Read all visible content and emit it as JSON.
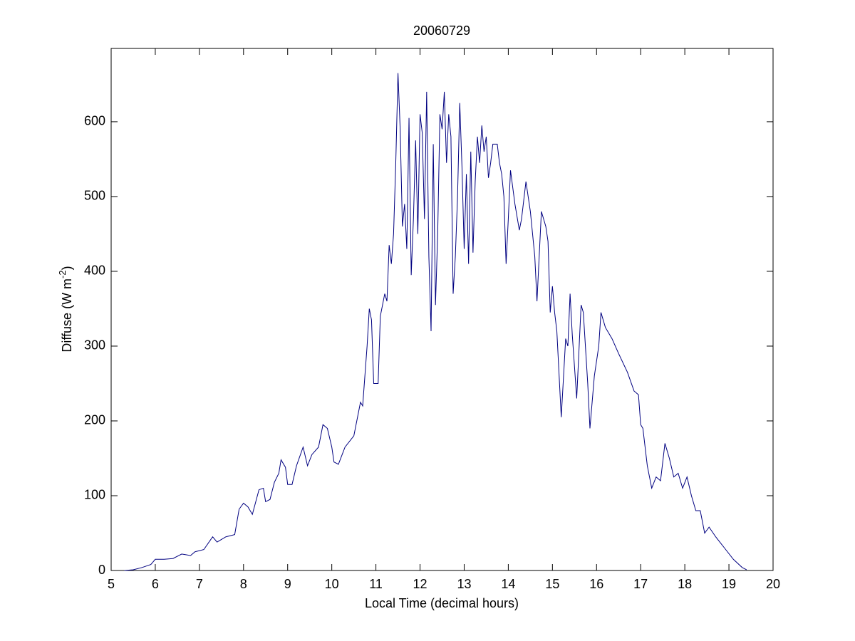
{
  "chart_data": {
    "type": "line",
    "title": "20060729",
    "x_label": "Local Time (decimal hours)",
    "y_label_parts": [
      "Diffuse (W m",
      "-2",
      ")"
    ],
    "color": "#000080",
    "xlim": [
      5,
      20
    ],
    "xticks": [
      5,
      6,
      7,
      8,
      9,
      10,
      11,
      12,
      13,
      14,
      15,
      16,
      17,
      18,
      19,
      20
    ],
    "ylim": [
      0,
      698
    ],
    "yticks": [
      0,
      100,
      200,
      300,
      400,
      500,
      600
    ],
    "x": [
      5.3,
      5.5,
      5.7,
      5.9,
      6.0,
      6.2,
      6.4,
      6.6,
      6.8,
      6.9,
      7.1,
      7.3,
      7.4,
      7.6,
      7.8,
      7.9,
      8.0,
      8.1,
      8.2,
      8.35,
      8.45,
      8.5,
      8.6,
      8.7,
      8.8,
      8.85,
      8.95,
      9.0,
      9.1,
      9.2,
      9.35,
      9.45,
      9.55,
      9.7,
      9.8,
      9.9,
      10.0,
      10.05,
      10.15,
      10.3,
      10.5,
      10.6,
      10.65,
      10.7,
      10.8,
      10.85,
      10.9,
      10.95,
      11.05,
      11.1,
      11.2,
      11.25,
      11.3,
      11.35,
      11.4,
      11.45,
      11.5,
      11.55,
      11.6,
      11.65,
      11.7,
      11.75,
      11.8,
      11.85,
      11.9,
      11.95,
      12.0,
      12.05,
      12.1,
      12.15,
      12.2,
      12.25,
      12.3,
      12.35,
      12.4,
      12.45,
      12.5,
      12.55,
      12.6,
      12.65,
      12.7,
      12.75,
      12.8,
      12.85,
      12.9,
      12.95,
      13.0,
      13.05,
      13.1,
      13.15,
      13.2,
      13.25,
      13.3,
      13.35,
      13.4,
      13.45,
      13.5,
      13.55,
      13.6,
      13.65,
      13.75,
      13.8,
      13.85,
      13.9,
      13.95,
      14.0,
      14.05,
      14.15,
      14.25,
      14.3,
      14.4,
      14.5,
      14.6,
      14.65,
      14.75,
      14.85,
      14.9,
      14.95,
      15.0,
      15.05,
      15.1,
      15.2,
      15.3,
      15.35,
      15.4,
      15.45,
      15.55,
      15.65,
      15.7,
      15.8,
      15.85,
      15.95,
      16.05,
      16.1,
      16.2,
      16.35,
      16.5,
      16.7,
      16.85,
      16.95,
      17.0,
      17.05,
      17.15,
      17.25,
      17.35,
      17.45,
      17.55,
      17.65,
      17.75,
      17.85,
      17.95,
      18.05,
      18.15,
      18.25,
      18.35,
      18.45,
      18.55,
      18.7,
      18.9,
      19.1,
      19.3,
      19.4
    ],
    "values": [
      0,
      1,
      4,
      8,
      15,
      15,
      16,
      22,
      20,
      25,
      28,
      45,
      38,
      45,
      48,
      82,
      90,
      85,
      75,
      108,
      110,
      92,
      95,
      118,
      130,
      148,
      138,
      115,
      115,
      140,
      165,
      140,
      155,
      165,
      195,
      190,
      165,
      145,
      142,
      165,
      180,
      210,
      225,
      220,
      300,
      350,
      335,
      250,
      250,
      340,
      370,
      360,
      435,
      410,
      450,
      545,
      665,
      590,
      460,
      490,
      430,
      605,
      395,
      470,
      575,
      450,
      610,
      585,
      470,
      640,
      420,
      320,
      570,
      355,
      450,
      610,
      590,
      640,
      545,
      610,
      580,
      370,
      420,
      500,
      625,
      540,
      430,
      530,
      410,
      560,
      425,
      520,
      580,
      545,
      595,
      560,
      580,
      525,
      545,
      570,
      570,
      545,
      530,
      500,
      410,
      470,
      535,
      490,
      455,
      470,
      520,
      480,
      420,
      360,
      480,
      460,
      440,
      345,
      380,
      345,
      320,
      205,
      310,
      300,
      370,
      315,
      230,
      355,
      345,
      250,
      190,
      260,
      300,
      345,
      325,
      310,
      290,
      265,
      240,
      235,
      195,
      190,
      140,
      110,
      125,
      120,
      170,
      150,
      125,
      130,
      110,
      125,
      100,
      80,
      80,
      50,
      58,
      45,
      30,
      15,
      4,
      1
    ]
  }
}
